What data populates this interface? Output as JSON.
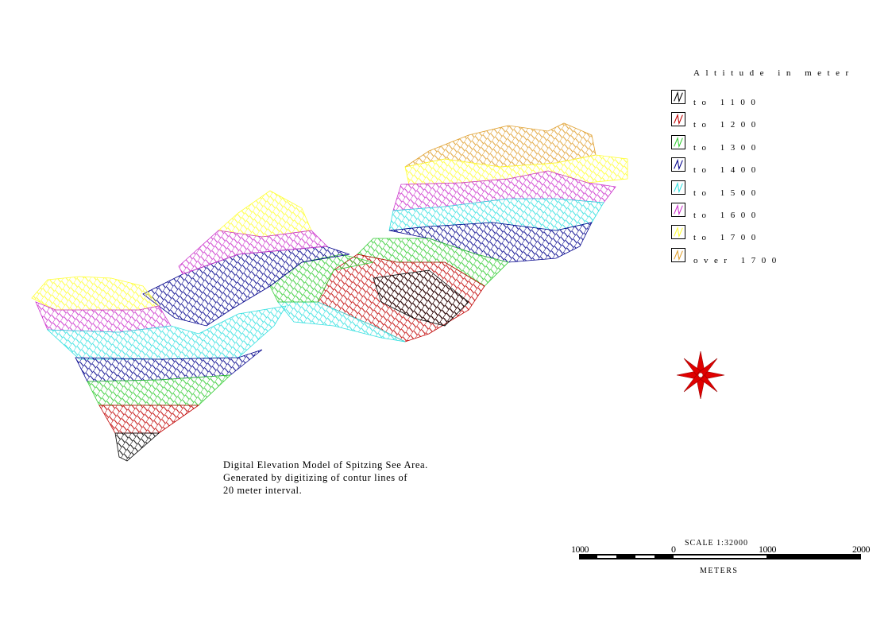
{
  "legend": {
    "title": "Altitude in meter",
    "items": [
      {
        "label": "to 1100",
        "color": "#000000"
      },
      {
        "label": "to 1200",
        "color": "#c00000"
      },
      {
        "label": "to 1300",
        "color": "#33cc33"
      },
      {
        "label": "to 1400",
        "color": "#00008b"
      },
      {
        "label": "to 1500",
        "color": "#33e0e0"
      },
      {
        "label": "to 1600",
        "color": "#cc33cc"
      },
      {
        "label": "to 1700",
        "color": "#ffff33"
      },
      {
        "label": "over 1700",
        "color": "#e0a030"
      }
    ]
  },
  "caption": {
    "line1": "Digital Elevation Model of Spitzing See Area.",
    "line2": "Generated by digitizing of contur lines of",
    "line3": "20 meter interval."
  },
  "scale": {
    "title": "SCALE 1:32000",
    "ticks": [
      "1000",
      "0",
      "1000",
      "2000"
    ],
    "unit": "METERS"
  },
  "compass": {
    "icon": "compass-rose-icon",
    "color": "#e00000"
  }
}
